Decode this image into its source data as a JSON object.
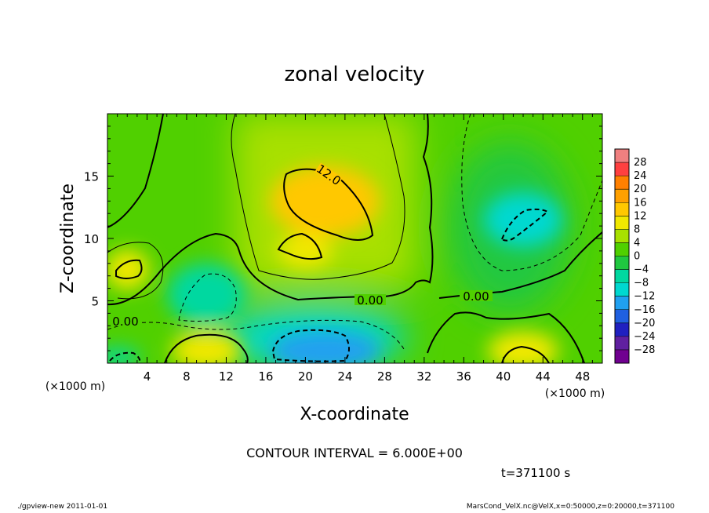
{
  "chart_data": {
    "type": "heatmap",
    "title": "zonal velocity",
    "xlabel": "X-coordinate",
    "ylabel": "Z-coordinate",
    "x_unit_label": "(×1000 m)",
    "y_unit_label": "(×1000 m)",
    "xlim": [
      0,
      50
    ],
    "ylim": [
      0,
      20
    ],
    "x_ticks": [
      4,
      8,
      12,
      16,
      20,
      24,
      28,
      32,
      36,
      40,
      44,
      48
    ],
    "y_ticks": [
      5,
      10,
      15
    ],
    "colorbar": {
      "labels": [
        28,
        24,
        20,
        16,
        12,
        8,
        4,
        0,
        -4,
        -8,
        -12,
        -16,
        -20,
        -24,
        -28
      ],
      "colors": [
        "#f08080",
        "#ff4040",
        "#ff8000",
        "#ffa000",
        "#ffc800",
        "#f0e800",
        "#a8e000",
        "#50d000",
        "#20c840",
        "#00d8a0",
        "#00d8d0",
        "#20a0f0",
        "#2060e0",
        "#2020c0",
        "#6020a0",
        "#700090"
      ]
    },
    "contour_labels": [
      "12.0",
      "0.00",
      "0.00",
      "0.00"
    ],
    "contour_interval_text": "CONTOUR INTERVAL = 6.000E+00",
    "time_text": "t=371100 s",
    "features": [
      {
        "x": 22,
        "z": 13,
        "u": 14
      },
      {
        "x": 20,
        "z": 9,
        "u": 12
      },
      {
        "x": 2,
        "z": 7.5,
        "u": 10
      },
      {
        "x": 10,
        "z": 1,
        "u": 9
      },
      {
        "x": 42,
        "z": 1,
        "u": 10
      },
      {
        "x": 42,
        "z": 11.5,
        "u": -10
      },
      {
        "x": 10,
        "z": 5.5,
        "u": -7
      },
      {
        "x": 22,
        "z": 1,
        "u": -13
      },
      {
        "x": 1,
        "z": 0.5,
        "u": -7
      }
    ]
  },
  "footer": {
    "left": "./gpview-new  2011-01-01",
    "right": "MarsCond_VelX.nc@VelX,x=0:50000,z=0:20000,t=371100"
  }
}
